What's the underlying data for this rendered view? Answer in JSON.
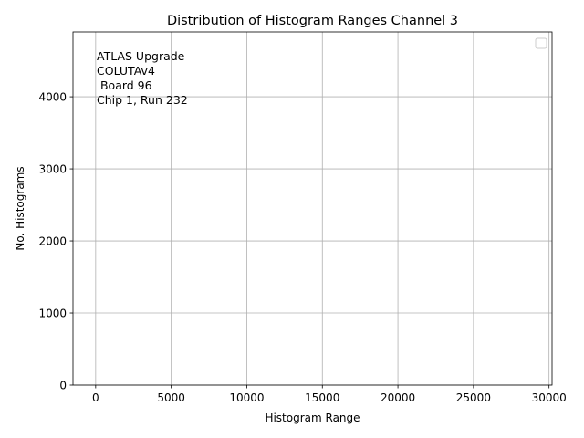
{
  "chart_data": {
    "type": "bar",
    "title": "Distribution of Histogram Ranges Channel 3",
    "xlabel": "Histogram Range",
    "ylabel": "No. Histograms",
    "xlim": [
      -1500,
      30200
    ],
    "ylim": [
      0,
      4900
    ],
    "xticks": [
      0,
      5000,
      10000,
      15000,
      20000,
      25000,
      30000
    ],
    "yticks": [
      0,
      1000,
      2000,
      3000,
      4000
    ],
    "grid": true,
    "legend": {
      "placement": "top-right",
      "entries": []
    },
    "annotation_lines": [
      "ATLAS Upgrade",
      "COLUTAv4",
      " Board 96",
      "Chip 1, Run 232"
    ],
    "series": []
  }
}
